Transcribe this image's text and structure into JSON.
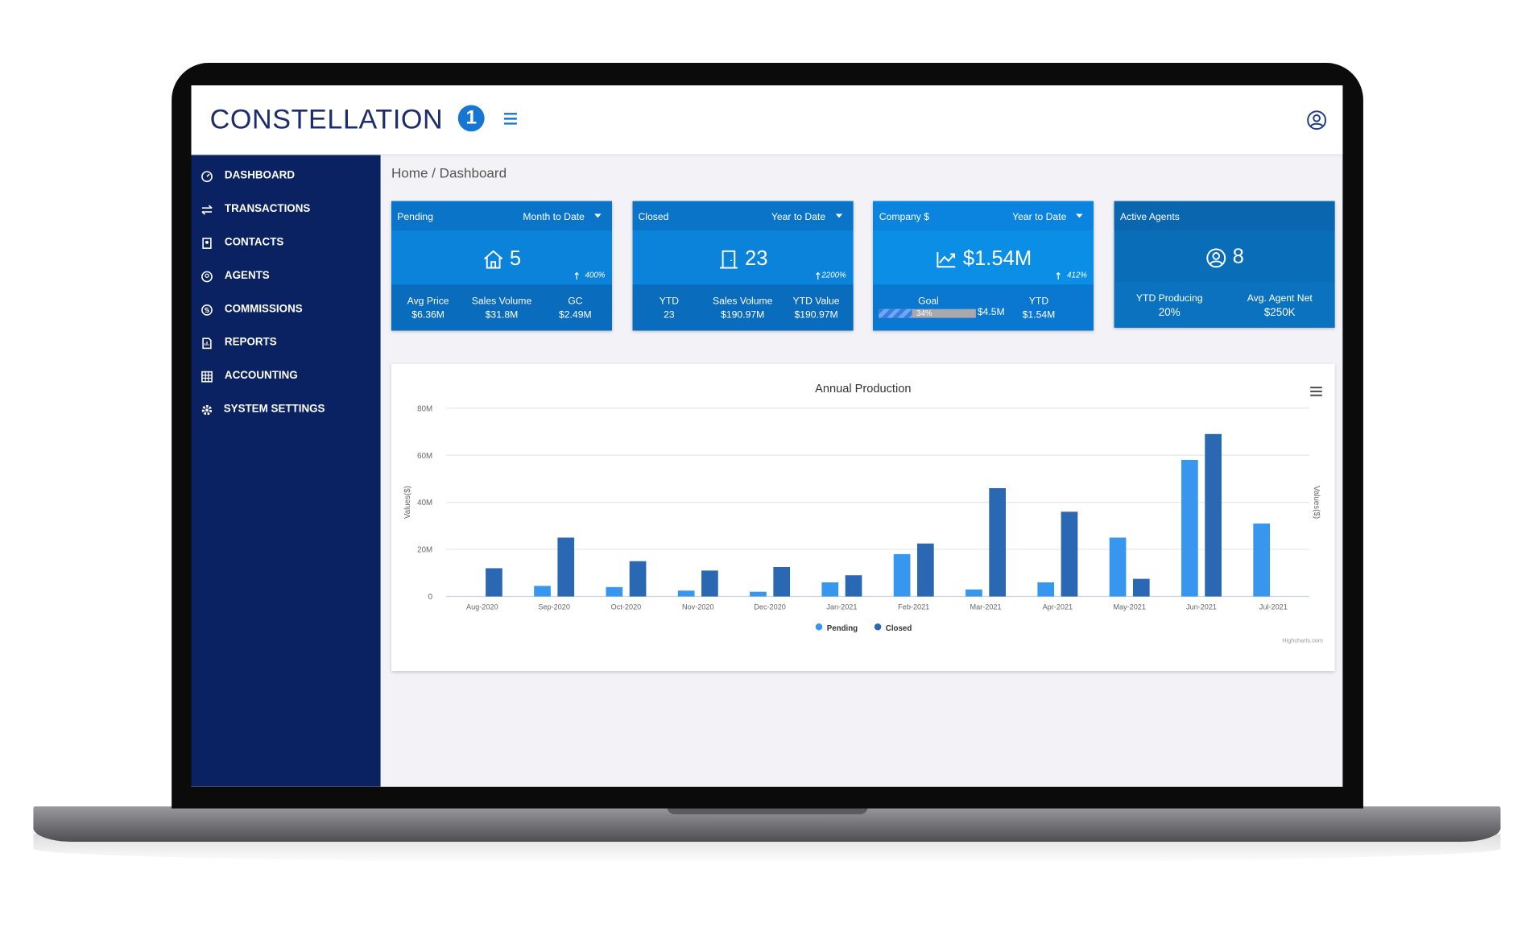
{
  "header": {
    "logo": "CONSTELLATION",
    "logo_mark": "1"
  },
  "sidebar": {
    "items": [
      "DASHBOARD",
      "TRANSACTIONS",
      "CONTACTS",
      "AGENTS",
      "COMMISSIONS",
      "REPORTS",
      "ACCOUNTING",
      "SYSTEM SETTINGS"
    ]
  },
  "breadcrumb": "Home / Dashboard",
  "cards": [
    {
      "title": "Pending",
      "period": "Month to Date",
      "value": "5",
      "change": "400%",
      "stats": [
        {
          "label": "Avg Price",
          "value": "$6.36M"
        },
        {
          "label": "Sales Volume",
          "value": "$31.8M"
        },
        {
          "label": "GC",
          "value": "$2.49M"
        }
      ]
    },
    {
      "title": "Closed",
      "period": "Year to Date",
      "value": "23",
      "change": "2200%",
      "stats": [
        {
          "label": "YTD",
          "value": "23"
        },
        {
          "label": "Sales Volume",
          "value": "$190.97M"
        },
        {
          "label": "YTD Value",
          "value": "$190.97M"
        }
      ]
    },
    {
      "title": "Company $",
      "period": "Year to Date",
      "value": "$1.54M",
      "change": "412%",
      "stats": [
        {
          "label": "Goal",
          "value": "$4.5M",
          "progress": "34%"
        },
        {
          "label": "YTD",
          "value": "$1.54M"
        }
      ]
    },
    {
      "title": "Active Agents",
      "value": "8",
      "stats": [
        {
          "label": "YTD Producing",
          "value": "20%"
        },
        {
          "label": "Avg. Agent Net",
          "value": "$250K"
        }
      ]
    }
  ],
  "chart_data": {
    "type": "bar",
    "title": "Annual Production",
    "y_axis_title": "Values($)",
    "y2_axis_title": "Values($)",
    "credits": "Highcharts.com",
    "categories": [
      "Aug-2020",
      "Sep-2020",
      "Oct-2020",
      "Nov-2020",
      "Dec-2020",
      "Jan-2021",
      "Feb-2021",
      "Mar-2021",
      "Apr-2021",
      "May-2021",
      "Jun-2021",
      "Jul-2021"
    ],
    "series": [
      {
        "name": "Pending",
        "color": "#3797ee",
        "values": [
          0,
          4500000,
          4000000,
          2500000,
          2000000,
          6000000,
          18000000,
          3000000,
          6000000,
          25000000,
          58000000,
          31000000
        ]
      },
      {
        "name": "Closed",
        "color": "#2a68b4",
        "values": [
          12000000,
          25000000,
          15000000,
          11000000,
          12500000,
          9000000,
          22500000,
          46000000,
          36000000,
          7500000,
          69000000,
          0
        ]
      }
    ],
    "ylim": [
      0,
      80000000
    ],
    "yticks": [
      0,
      {
        "value": 20000000,
        "label": "20M"
      },
      {
        "value": 40000000,
        "label": "40M"
      },
      {
        "value": 60000000,
        "label": "60M"
      },
      {
        "value": 80000000,
        "label": "80M"
      }
    ],
    "grid": true,
    "legend": "bottom"
  }
}
